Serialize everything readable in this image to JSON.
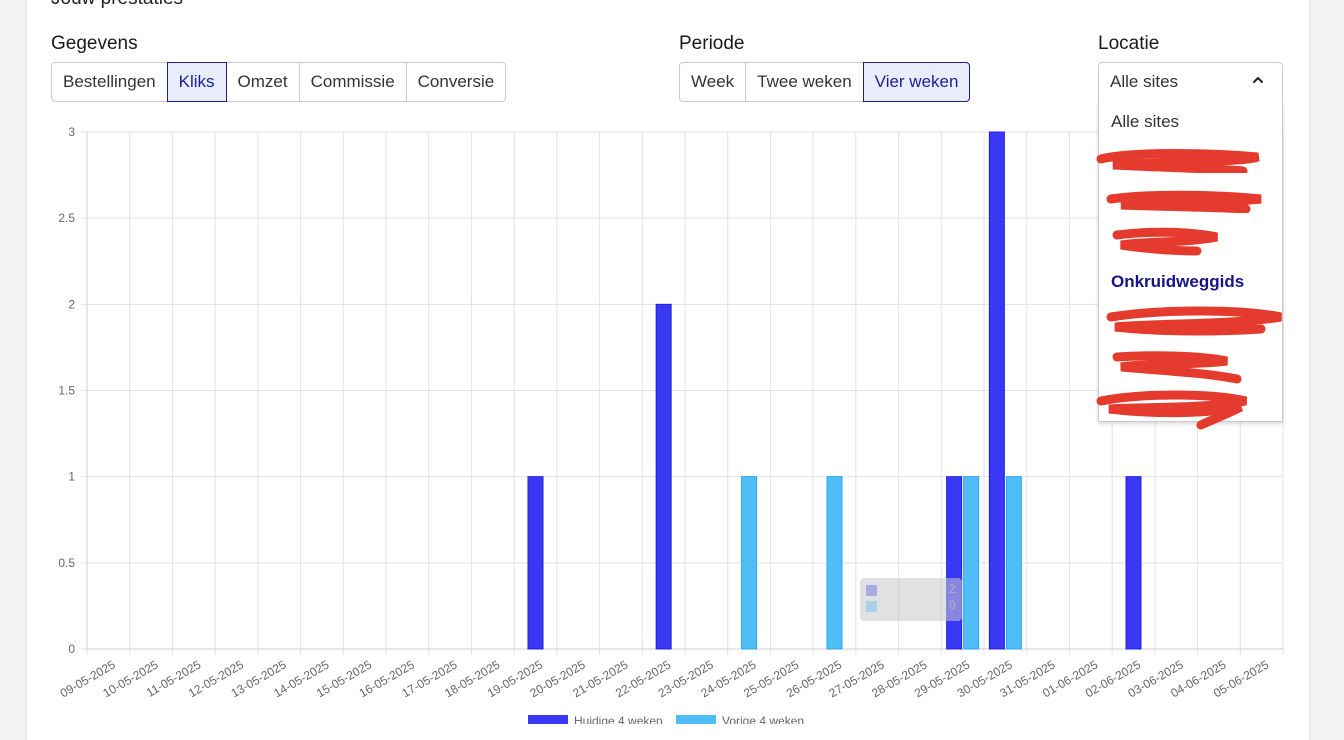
{
  "section_title": "Jouw prestaties",
  "gegevens": {
    "label": "Gegevens",
    "options": [
      "Bestellingen",
      "Kliks",
      "Omzet",
      "Commissie",
      "Conversie"
    ],
    "active": "Kliks"
  },
  "periode": {
    "label": "Periode",
    "options": [
      "Week",
      "Twee weken",
      "Vier weken"
    ],
    "active": "Vier weken"
  },
  "locatie": {
    "label": "Locatie",
    "value": "Alle sites",
    "dropdown": {
      "first_option": "Alle sites",
      "highlighted_option": "Onkruidweggids"
    }
  },
  "colors": {
    "current": "#3838f5",
    "previous": "#4fbdf6",
    "active_bg": "#e9ecfb",
    "active_text": "#1b1f8f",
    "redaction": "#e53a2e"
  },
  "chart_data": {
    "type": "bar",
    "categories": [
      "09-05-2025",
      "10-05-2025",
      "11-05-2025",
      "12-05-2025",
      "13-05-2025",
      "14-05-2025",
      "15-05-2025",
      "16-05-2025",
      "17-05-2025",
      "18-05-2025",
      "19-05-2025",
      "20-05-2025",
      "21-05-2025",
      "22-05-2025",
      "23-05-2025",
      "24-05-2025",
      "25-05-2025",
      "26-05-2025",
      "27-05-2025",
      "28-05-2025",
      "29-05-2025",
      "30-05-2025",
      "31-05-2025",
      "01-06-2025",
      "02-06-2025",
      "03-06-2025",
      "04-06-2025",
      "05-06-2025"
    ],
    "series": [
      {
        "name": "Huidige 4 weken",
        "values": [
          0,
          0,
          0,
          0,
          0,
          0,
          0,
          0,
          0,
          0,
          1,
          0,
          0,
          2,
          0,
          0,
          0,
          0,
          0,
          0,
          1,
          3,
          0,
          0,
          1,
          0,
          0,
          0
        ]
      },
      {
        "name": "Vorige 4 weken",
        "values": [
          0,
          0,
          0,
          0,
          0,
          0,
          0,
          0,
          0,
          0,
          0,
          0,
          0,
          0,
          0,
          1,
          0,
          1,
          0,
          0,
          1,
          1,
          0,
          0,
          0,
          0,
          0,
          0
        ]
      }
    ],
    "ylim": [
      0,
      3
    ],
    "y_ticks": [
      "0",
      "0.5",
      "1",
      "1.5",
      "2",
      "2.5",
      "3"
    ],
    "grid": true,
    "legend_placement": "bottom",
    "tooltip_values": [
      "2",
      "0"
    ]
  }
}
